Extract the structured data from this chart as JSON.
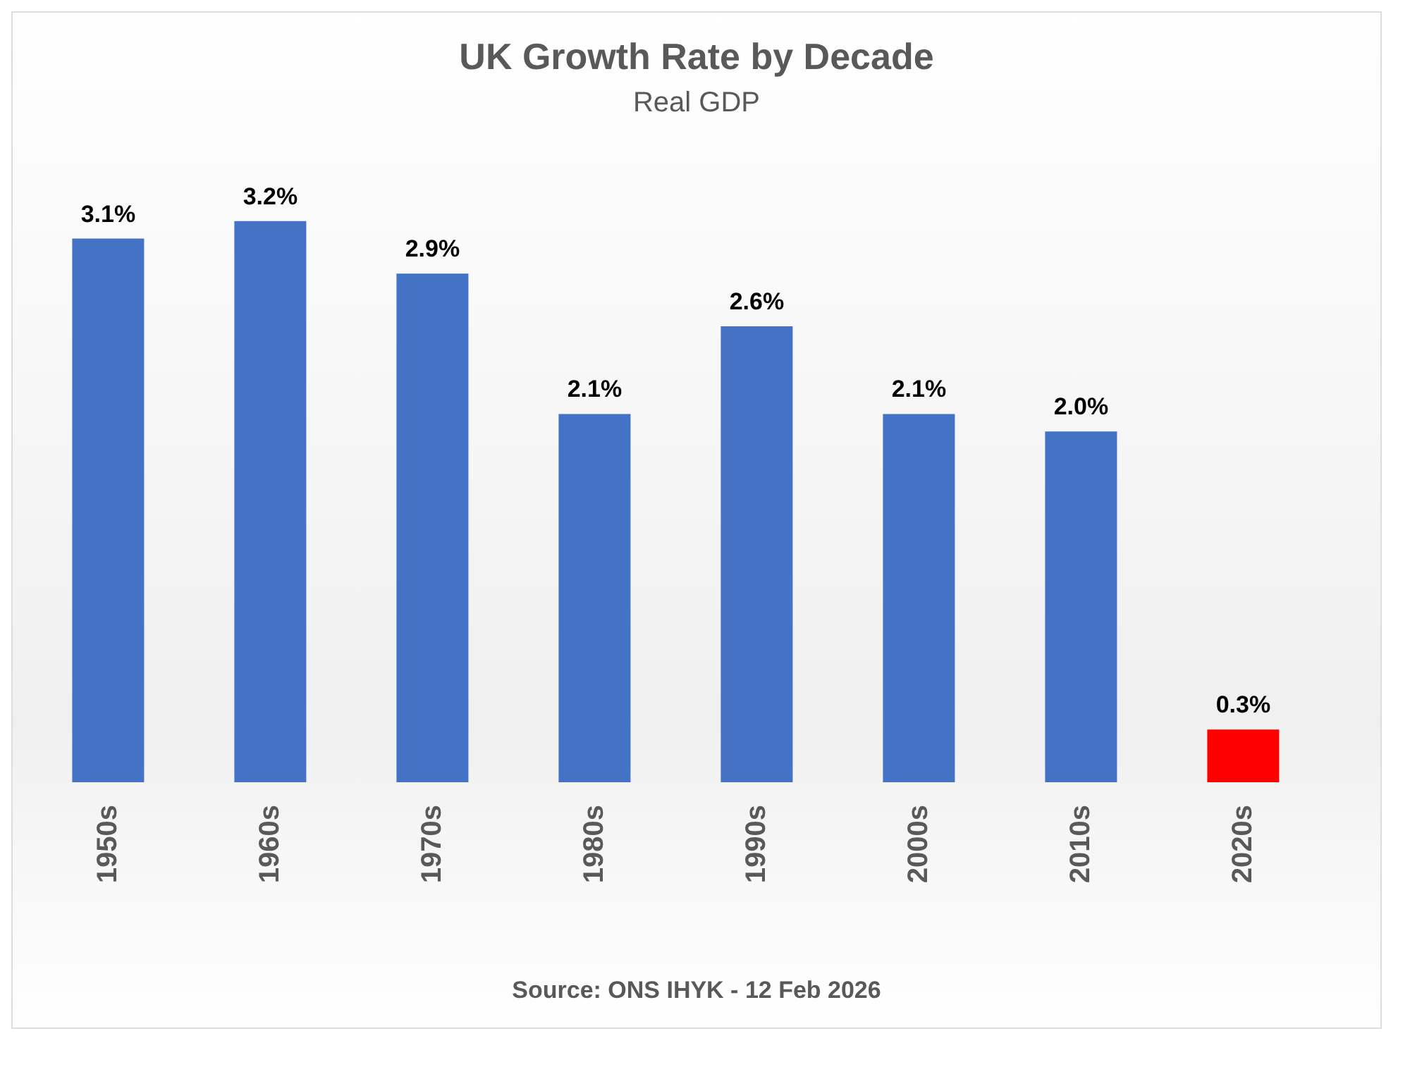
{
  "chart_data": {
    "type": "bar",
    "title": "UK Growth Rate by Decade",
    "subtitle": "Real GDP",
    "categories": [
      "1950s",
      "1960s",
      "1970s",
      "1980s",
      "1990s",
      "2000s",
      "2010s",
      "2020s"
    ],
    "values": [
      3.1,
      3.2,
      2.9,
      2.1,
      2.6,
      2.1,
      2.0,
      0.3
    ],
    "colors": [
      "#4472c4",
      "#4472c4",
      "#4472c4",
      "#4472c4",
      "#4472c4",
      "#4472c4",
      "#4472c4",
      "#ff0000"
    ],
    "value_labels": [
      "3.1%",
      "3.2%",
      "2.9%",
      "2.1%",
      "2.6%",
      "2.1%",
      "2.0%",
      "0.3%"
    ],
    "annotations": [
      "Source: ONS IHYK - 12 Feb 2026"
    ],
    "tick_labels": "x"
  }
}
